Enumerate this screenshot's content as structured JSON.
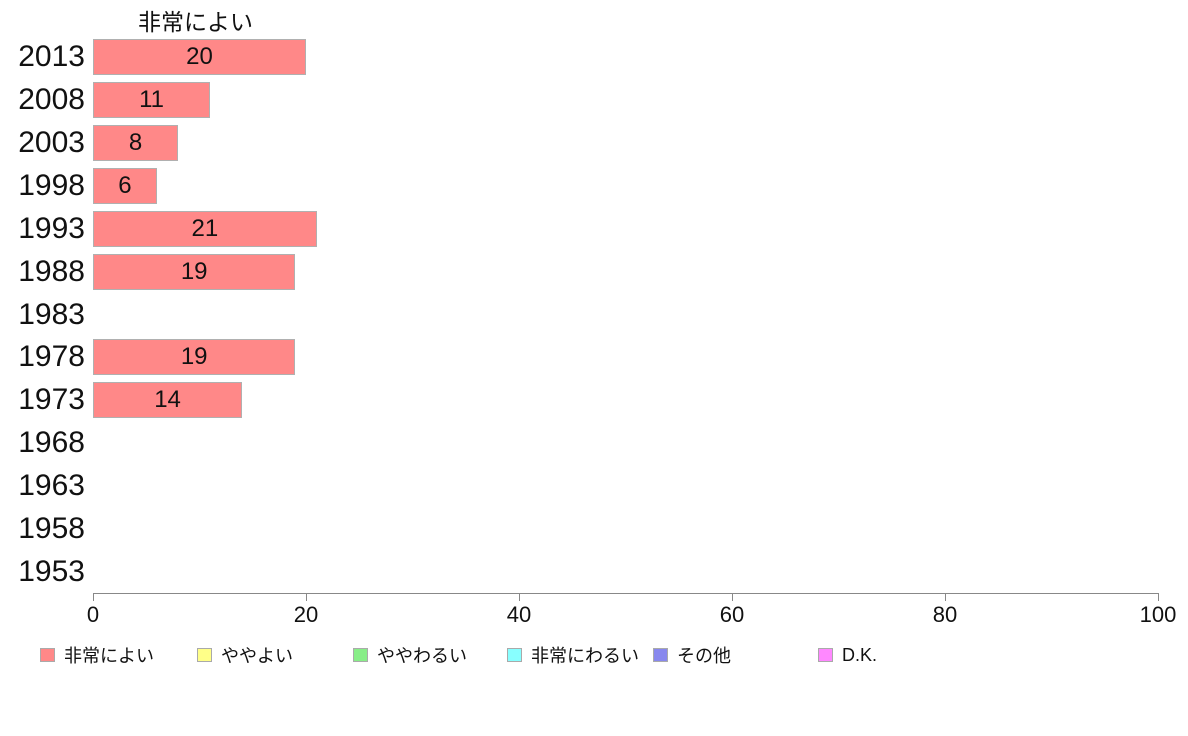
{
  "chart_data": {
    "type": "bar",
    "orientation": "horizontal",
    "title": "非常によい",
    "categories": [
      "2013",
      "2008",
      "2003",
      "1998",
      "1993",
      "1988",
      "1983",
      "1978",
      "1973",
      "1968",
      "1963",
      "1958",
      "1953"
    ],
    "values": [
      20,
      11,
      8,
      6,
      21,
      19,
      null,
      19,
      14,
      null,
      null,
      null,
      null
    ],
    "xlabel": "",
    "ylabel": "",
    "xlim": [
      0,
      100
    ],
    "x_ticks": [
      0,
      20,
      40,
      60,
      80,
      100
    ],
    "grid": false,
    "bar_color": "#FF8888",
    "bar_border_color": "#b0b0b0",
    "axis_color": "#888888",
    "legend_position": "bottom",
    "legend": [
      {
        "label": "非常によい",
        "color": "#FF8888"
      },
      {
        "label": "ややよい",
        "color": "#FFFF88"
      },
      {
        "label": "ややわるい",
        "color": "#88EE88"
      },
      {
        "label": "非常にわるい",
        "color": "#88FFFF"
      },
      {
        "label": "その他",
        "color": "#8888EE"
      },
      {
        "label": "D.K.",
        "color": "#FF88FF"
      }
    ]
  }
}
